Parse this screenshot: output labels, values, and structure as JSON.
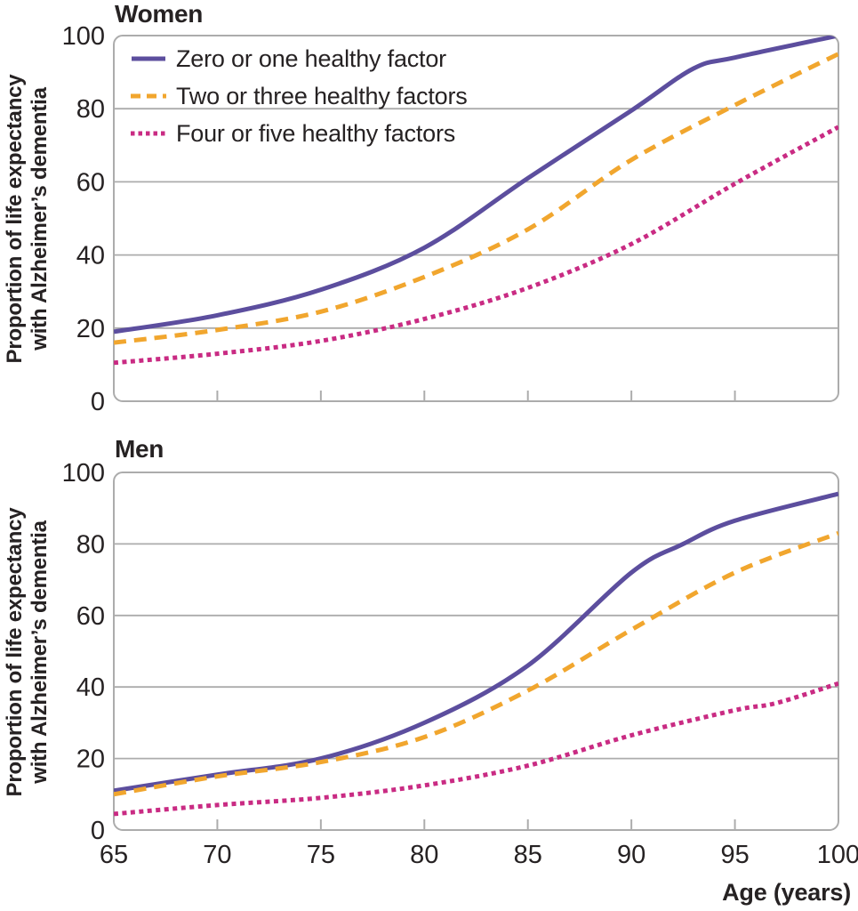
{
  "figure": {
    "x_axis_label": "Age (years)",
    "y_axis_label_lines": [
      "Proportion of life expectancy",
      "with Alzheimer’s dementia"
    ],
    "text_color": "#262223",
    "grid_color": "#ACACAC",
    "background": "#FFFFFF"
  },
  "legend": {
    "position": "top-left-of-women-panel",
    "items": [
      {
        "label": "Zero or one healthy factor",
        "style": "solid",
        "color": "#5C4E9E"
      },
      {
        "label": "Two or three healthy factors",
        "style": "long-dash",
        "color": "#F1A62E"
      },
      {
        "label": "Four or five healthy factors",
        "style": "short-dash",
        "color": "#C92B83"
      }
    ]
  },
  "chart_data": [
    {
      "type": "line",
      "title": "Women",
      "xlabel": "Age (years)",
      "ylabel": "Proportion of life expectancy with Alzheimer’s dementia",
      "xlim": [
        65,
        100
      ],
      "ylim": [
        0,
        100
      ],
      "x_ticks": [
        65,
        70,
        75,
        80,
        85,
        90,
        95,
        100
      ],
      "y_ticks": [
        0,
        20,
        40,
        60,
        80,
        100
      ],
      "grid": "horizontal",
      "legend_position": "top-left",
      "series": [
        {
          "name": "Zero or one healthy factor",
          "color": "#5C4E9E",
          "dash": "solid",
          "x": [
            65,
            70,
            75,
            80,
            85,
            90,
            93,
            95,
            100
          ],
          "y": [
            19,
            23.5,
            30.5,
            42,
            61,
            79.5,
            91,
            94,
            100
          ]
        },
        {
          "name": "Two or three healthy factors",
          "color": "#F1A62E",
          "dash": "long-dash",
          "x": [
            65,
            70,
            75,
            80,
            85,
            90,
            95,
            100
          ],
          "y": [
            16,
            19.5,
            24.5,
            34,
            47,
            66,
            81,
            95
          ]
        },
        {
          "name": "Four or five healthy factors",
          "color": "#C92B83",
          "dash": "short-dash",
          "x": [
            65,
            70,
            75,
            80,
            85,
            90,
            95,
            100
          ],
          "y": [
            10.5,
            13,
            16.5,
            22.5,
            31,
            43,
            59.5,
            75
          ]
        }
      ]
    },
    {
      "type": "line",
      "title": "Men",
      "xlabel": "Age (years)",
      "ylabel": "Proportion of life expectancy with Alzheimer’s dementia",
      "xlim": [
        65,
        100
      ],
      "ylim": [
        0,
        100
      ],
      "x_ticks": [
        65,
        70,
        75,
        80,
        85,
        90,
        95,
        100
      ],
      "y_ticks": [
        0,
        20,
        40,
        60,
        80,
        100
      ],
      "grid": "horizontal",
      "legend_position": "none",
      "series": [
        {
          "name": "Zero or one healthy factor",
          "color": "#5C4E9E",
          "dash": "solid",
          "x": [
            65,
            70,
            75,
            80,
            85,
            90,
            92.5,
            95,
            100
          ],
          "y": [
            11,
            15.5,
            20,
            30,
            46,
            72,
            80,
            86.5,
            94
          ]
        },
        {
          "name": "Two or three healthy factors",
          "color": "#F1A62E",
          "dash": "long-dash",
          "x": [
            65,
            70,
            75,
            80,
            85,
            90,
            95,
            100
          ],
          "y": [
            10,
            15,
            19,
            26,
            39,
            56,
            72,
            83
          ]
        },
        {
          "name": "Four or five healthy factors",
          "color": "#C92B83",
          "dash": "short-dash",
          "x": [
            65,
            70,
            75,
            80,
            85,
            90,
            95,
            97,
            100
          ],
          "y": [
            4.5,
            7,
            9,
            12.5,
            18,
            26.5,
            33.5,
            35.5,
            41
          ]
        }
      ]
    }
  ]
}
